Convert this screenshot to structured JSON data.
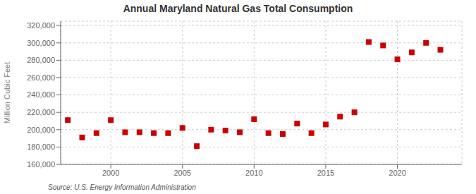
{
  "chart_data": {
    "type": "scatter",
    "title": "Annual Maryland Natural Gas Total Consumption",
    "ylabel": "Million Cubic Feet",
    "annotations": [
      "Source: U.S. Energy Information Administration"
    ],
    "x": [
      1997,
      1998,
      1999,
      2000,
      2001,
      2002,
      2003,
      2004,
      2005,
      2006,
      2007,
      2008,
      2009,
      2010,
      2011,
      2012,
      2013,
      2014,
      2015,
      2016,
      2017,
      2018,
      2019,
      2020,
      2021,
      2022,
      2023
    ],
    "values": [
      211000,
      191000,
      196000,
      211000,
      197000,
      197000,
      196000,
      196000,
      202000,
      181000,
      200000,
      199000,
      197000,
      212000,
      196000,
      195000,
      207000,
      196000,
      206000,
      215000,
      220000,
      301000,
      297000,
      281000,
      289000,
      300000,
      292000
    ],
    "color": "#cc0000",
    "marker": "square",
    "grid": true,
    "xlim": [
      1996.5,
      2024.5
    ],
    "xticks": [
      2000,
      2005,
      2010,
      2015,
      2020
    ],
    "ylim": [
      160000,
      325000
    ],
    "yticks": [
      {
        "value": 160000,
        "label": "160,000"
      },
      {
        "value": 180000,
        "label": "180,000"
      },
      {
        "value": 200000,
        "label": "200,000"
      },
      {
        "value": 220000,
        "label": "220,000"
      },
      {
        "value": 240000,
        "label": "240,000"
      },
      {
        "value": 260000,
        "label": "260,000"
      },
      {
        "value": 280000,
        "label": "280,000"
      },
      {
        "value": 300000,
        "label": "300,000"
      },
      {
        "value": 320000,
        "label": "320,000"
      }
    ]
  }
}
